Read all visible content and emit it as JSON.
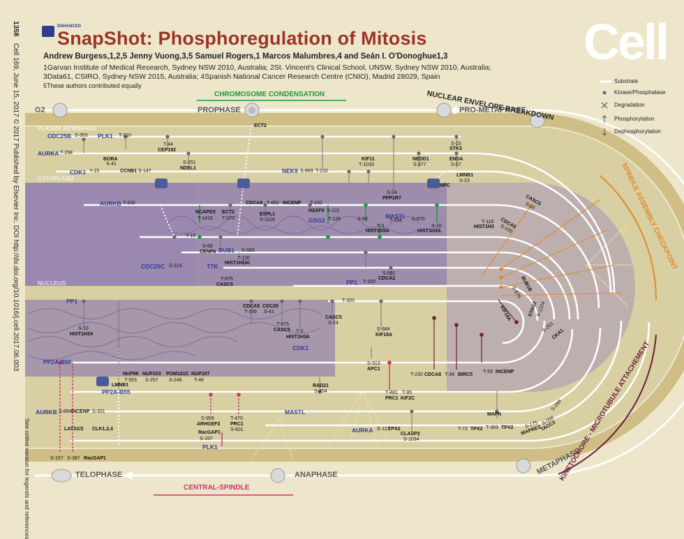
{
  "header": {
    "brand_small": "ENHANCED",
    "brand": "SnapShot:",
    "title": "Phosphoregulation of Mitosis",
    "authors": "Andrew Burgess,1,2,5 Jenny Vuong,3,5 Samuel Rogers,1 Marcos Malumbres,4 and Seán I. O'Donoghue1,3",
    "affiliations": [
      "1Garvan Institute of Medical Research, Sydney NSW 2010, Australia; 2St. Vincent's Clinical School, UNSW, Sydney NSW 2010, Australia;",
      "3Data61, CSIRO, Sydney NSW 2015, Australia; 4Spanish National Cancer Research Centre (CNIO), Madrid 28029, Spain",
      "5These authors contributed equally"
    ],
    "journal_logo": "Cell"
  },
  "side_text": {
    "page": "1358",
    "citation": "Cell 169, June 15, 2017 © 2017 Published by Elsevier Inc.   DOI http://dx.doi.org/10.1016/j.cell.2017.06.003",
    "online": "See online version for legends and references"
  },
  "legend": {
    "items": [
      {
        "symbol": "line",
        "label": "Substrate"
      },
      {
        "symbol": "dot",
        "label": "Kinase/Phosphatase"
      },
      {
        "symbol": "x",
        "label": "Degradation"
      },
      {
        "symbol": "arrow-up",
        "label": "Phosphorylation"
      },
      {
        "symbol": "arrow-down",
        "label": "Dephosphorylation"
      }
    ]
  },
  "phases": {
    "g2": "G2",
    "prophase": "PROPHASE",
    "prometaphase": "PRO-METAPHASE",
    "metaphase": "METAPHASE",
    "anaphase": "ANAPHASE",
    "telophase": "TELOPHASE"
  },
  "processes": {
    "chromosome_condensation": "CHROMOSOME CONDENSATION",
    "nuclear_envelope_breakdown": "NUCLEAR ENVELOPE BREAKDOWN",
    "spindle_assembly_checkpoint": "SPINDLE ASSEMBLY CHECKPOINT",
    "kinetochore_attachment": "KINETOCHORE - MICROTUBULE ATTACHEMENT",
    "central_spindle": "CENTRAL-SPINDLE"
  },
  "regions": {
    "plasma_membrane": "PLASMA MEMBRANE",
    "cytoplasm": "CYTOPLASM",
    "nucleus": "NUCLEUS"
  },
  "enzymes": {
    "cdc25b": "CDC25B",
    "plk1_top": "PLK1",
    "aurka_top": "AURKA",
    "cdk1_top": "CDK1",
    "nek9": "NEK9",
    "aurkb_top": "AURKB",
    "gsg2": "GSG2",
    "mastl_top": "MASTL",
    "bub1": "BUB1",
    "cdc25c": "CDC25C",
    "ttk": "TTK",
    "pp1_mid": "PP1",
    "pp1_low": "PP1",
    "pp2a_b56": "PP2A-B56",
    "pp2a_b55": "PP2A-B55",
    "cdk1_low": "CDK1",
    "aurkb_low": "AURKB",
    "mastl_low": "MASTL",
    "plk1_low": "PLK1",
    "aurka_low": "AURKA"
  },
  "substrates": {
    "s353": "S-353",
    "t210a": "T-210",
    "t44": "T-44",
    "cep192": "CEP192",
    "t298": "T-298",
    "bora": "BORA",
    "s41": "S-41",
    "y15": "Y-15",
    "ccnb1": "CCNB1",
    "s147": "S-147",
    "s251": "S-251",
    "ndel1": "NDEL1",
    "ect2": "ECT2",
    "s869": "S-869",
    "t210b": "T-210",
    "kif11": "KIF11",
    "t1033": "T-1033",
    "nedd1": "NEDD1",
    "s377": "S-377",
    "s15": "S-15",
    "stk3": "STK3",
    "ensa": "ENSA",
    "s67": "S-67",
    "lmnb1": "LMNB1",
    "s23": "S-23",
    "s24": "S-24",
    "ppp1r7": "PPP1R7",
    "npc": "NPC",
    "t232a": "T-232",
    "cdca8a": "CDCA8",
    "t892": "T-892",
    "incenp": "INCENP",
    "h2afx": "H2AFX",
    "s121": "S-121",
    "t232b": "T-232",
    "ncapd3": "NCAPD3",
    "t1415": "T-1415",
    "ect2b": "ECT2",
    "t373": "T-373",
    "espl1": "ESPL1",
    "s1126": "S-1126",
    "t128": "T-128",
    "s93": "S-93",
    "t3a": "T-3",
    "t194": "T-194",
    "hist1h3a_a": "HIST1H3A",
    "s875": "S-875",
    "s10a": "S-10",
    "hist1h3a_b": "HIST1H3A",
    "t118": "T-118",
    "hist1h3": "HIST1H3",
    "casc5a": "CASC5",
    "s24b": "S-24",
    "cdca5": "CDCA5",
    "s155": "S-155",
    "y15b": "Y-15",
    "s68": "S-68",
    "cenpa": "CENPA",
    "s589": "S-589",
    "t120": "T-120",
    "hist1h2ai": "HIST1H2AI",
    "s214": "S-214",
    "t875": "T-875",
    "casc5b": "CASC5",
    "t320a": "T-320",
    "s591": "S-591",
    "cdca2": "CDCA2",
    "bub1b": "BUB1B",
    "s676": "S-676",
    "stag2": "STAG2",
    "s1224": "S-1224",
    "s251b": "S-251",
    "cka1": "CKA1",
    "t320b": "T-320",
    "s10b": "S-10",
    "hist1h3a_c": "HIST1H3A",
    "cdca5b": "CDCA5",
    "t159": "T-159",
    "cdc20": "CDC20",
    "s41b": "S-41",
    "t875b": "T-875",
    "casc5c": "CASC5",
    "t3b": "T-3",
    "hist1h3a_d": "HIST1H3A",
    "casc5d": "CASC5",
    "s24c": "S-24",
    "s684": "S-684",
    "kif18a": "KIF18A",
    "s313": "S-313",
    "apc1": "APC1",
    "kif18a_b": "KIF18A",
    "t230": "T-230",
    "cdca8b": "CDCA8",
    "t34": "T-34",
    "birc5": "BIRC5",
    "t59": "T-59",
    "incenp_b": "INCENP",
    "nup98": "NUP98",
    "nup153": "NUP153",
    "pom121c": "POM121C",
    "nup107": "NUP107",
    "t553": "T-553",
    "s257": "S-257",
    "s246": "S-246",
    "t46": "T-46",
    "lmnb1b": "LMNB1",
    "rad21": "RAD21",
    "s454": "S-454",
    "t481": "T-481",
    "prc1a": "PRC1",
    "t95": "T-95",
    "kif2c": "KIF2C",
    "s894": "S-894",
    "incenp_c": "INCENP",
    "s331": "S-331",
    "lats12": "LATS1/2",
    "clk124": "CLK1,2,4",
    "s959": "S-959",
    "arhgef2": "ARHGEF2",
    "t470": "T-470",
    "prc1b": "PRC1",
    "racgap1": "RacGAP1",
    "s157": "S-157",
    "s601": "S-601",
    "s121b": "S-121",
    "tpx2a": "TPX2",
    "clasp2": "CLASP2",
    "s1034": "S-1034",
    "t72": "T-72",
    "tpx2b": "TPX2",
    "mapk": "MAPK",
    "t369": "T-369",
    "tpx2c": "TPX2",
    "s175": "S-175",
    "mapre3": "MAPRE3",
    "s556": "S-556",
    "tacc3": "TACC3",
    "s288": "S-288",
    "s157b": "S-157",
    "s387": "S-387",
    "racgap1b": "RacGAP1"
  },
  "colors": {
    "background": "#ede6cb",
    "title": "#9c3328",
    "enzyme": "#2c3d8f",
    "green_process": "#1a9a3e",
    "pink_process": "#d0336b",
    "orange_process": "#e08a2a",
    "nucleus": "#8e7aa6",
    "membrane": "#cfc08a"
  },
  "icons": {
    "brand_badge": "cell-press-badge-icon",
    "nuclear_pore": "nuclear-pore-icon",
    "cell": "cell-icon"
  }
}
